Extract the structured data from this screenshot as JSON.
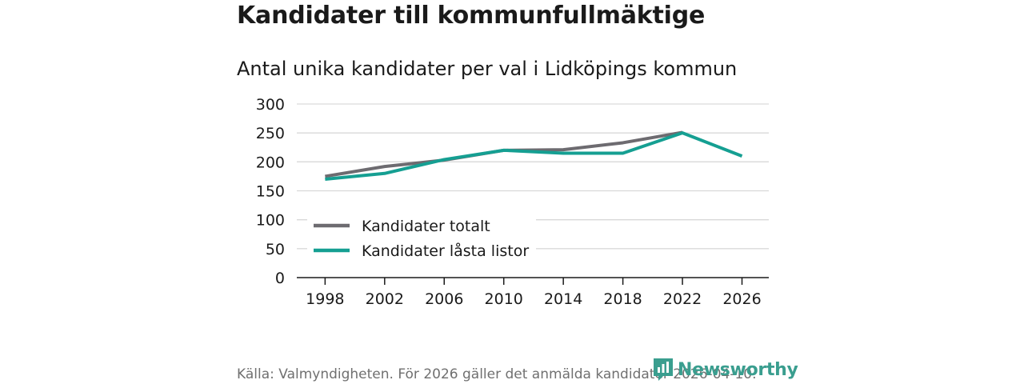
{
  "header": {
    "title": "Kandidater till kommunfullmäktige",
    "subtitle": "Antal unika kandidater per val i Lidköpings kommun"
  },
  "footer": {
    "source": "Källa: Valmyndigheten. För 2026 gäller det anmälda kandidater 2026-04-10.",
    "brand": "Newsworthy"
  },
  "colors": {
    "series_total": "#6d6b70",
    "series_locked": "#159f92",
    "grid": "#d9d9d9",
    "axis": "#1a1a1a",
    "brand": "#3a9e8f"
  },
  "chart_data": {
    "type": "line",
    "title": "Antal unika kandidater per val i Lidköpings kommun",
    "xlabel": "",
    "ylabel": "",
    "x": [
      1998,
      2002,
      2006,
      2010,
      2014,
      2018,
      2022,
      2026
    ],
    "ylim": [
      0,
      300
    ],
    "yticks": [
      0,
      50,
      100,
      150,
      200,
      250,
      300
    ],
    "xticks": [
      1998,
      2002,
      2006,
      2010,
      2014,
      2018,
      2022,
      2026
    ],
    "grid": true,
    "legend_position": "bottom-left",
    "series": [
      {
        "name": "Kandidater totalt",
        "x": [
          1998,
          2002,
          2006,
          2010,
          2014,
          2018,
          2022
        ],
        "values": [
          175,
          192,
          203,
          220,
          221,
          233,
          251
        ],
        "color": "#6d6b70"
      },
      {
        "name": "Kandidater låsta listor",
        "x": [
          1998,
          2002,
          2006,
          2010,
          2014,
          2018,
          2022,
          2026
        ],
        "values": [
          170,
          180,
          204,
          220,
          215,
          215,
          250,
          210
        ],
        "color": "#159f92"
      }
    ]
  }
}
